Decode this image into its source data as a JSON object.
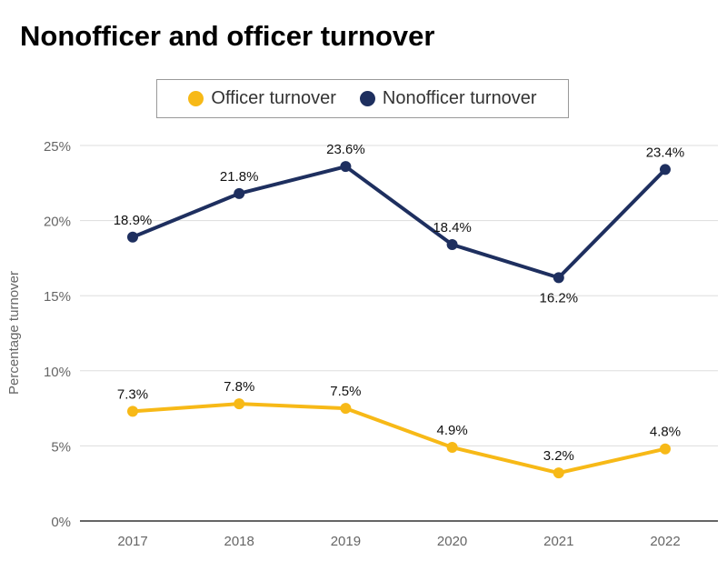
{
  "chart_data": {
    "type": "line",
    "title": "Nonofficer and officer turnover",
    "ylabel": "Percentage turnover",
    "xlabel": "",
    "categories": [
      "2017",
      "2018",
      "2019",
      "2020",
      "2021",
      "2022"
    ],
    "ylim": [
      0,
      25
    ],
    "yticks": [
      "0%",
      "5%",
      "10%",
      "15%",
      "20%",
      "25%"
    ],
    "grid": true,
    "legend_position": "top",
    "series": [
      {
        "name": "Officer turnover",
        "color": "#f7b917",
        "values": [
          7.3,
          7.8,
          7.5,
          4.9,
          3.2,
          4.8
        ],
        "labels": [
          "7.3%",
          "7.8%",
          "7.5%",
          "4.9%",
          "3.2%",
          "4.8%"
        ]
      },
      {
        "name": "Nonofficer turnover",
        "color": "#1e2f5f",
        "values": [
          18.9,
          21.8,
          23.6,
          18.4,
          16.2,
          23.4
        ],
        "labels": [
          "18.9%",
          "21.8%",
          "23.6%",
          "18.4%",
          "16.2%",
          "23.4%"
        ]
      }
    ]
  }
}
